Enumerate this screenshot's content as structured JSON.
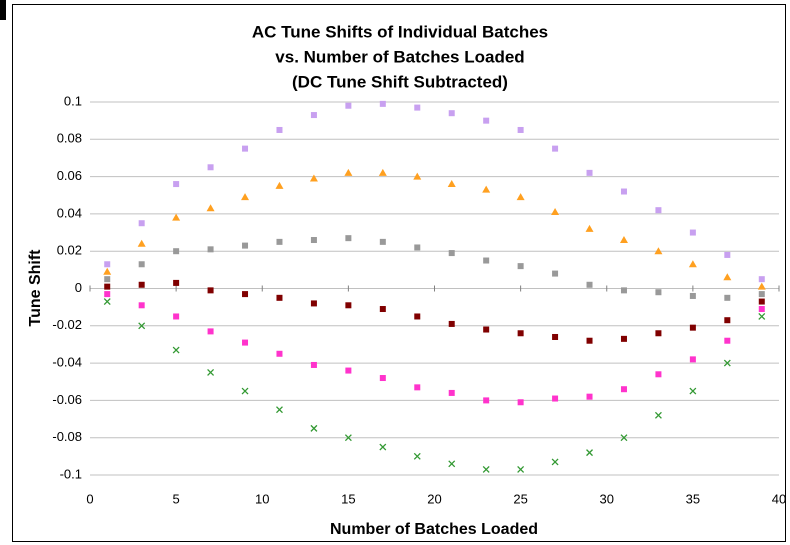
{
  "chart_data": {
    "type": "scatter",
    "title": [
      "AC Tune Shifts of Individual Batches",
      "vs. Number of Batches Loaded",
      "(DC Tune Shift Subtracted)"
    ],
    "x_label": "Number of Batches Loaded",
    "y_label": "Tune Shift",
    "xlim": [
      0,
      40
    ],
    "xticks": [
      0,
      5,
      10,
      15,
      20,
      25,
      30,
      35,
      40
    ],
    "ylim": [
      -0.1,
      0.1
    ],
    "yticks": [
      0.1,
      0.08,
      0.06,
      0.04,
      0.02,
      0,
      -0.02,
      -0.04,
      -0.06,
      -0.08,
      -0.1
    ],
    "grid": true,
    "x": [
      1,
      3,
      5,
      7,
      9,
      11,
      13,
      15,
      17,
      19,
      21,
      23,
      25,
      27,
      29,
      31,
      33,
      35,
      37,
      39
    ],
    "series": [
      {
        "color": "#c8a0f0",
        "marker": "square",
        "values": [
          0.013,
          0.035,
          0.056,
          0.065,
          0.075,
          0.085,
          0.093,
          0.098,
          0.099,
          0.097,
          0.094,
          0.09,
          0.085,
          0.075,
          0.062,
          0.052,
          0.042,
          0.03,
          0.018,
          0.005
        ]
      },
      {
        "color": "#ffa020",
        "marker": "triangle",
        "values": [
          0.009,
          0.024,
          0.038,
          0.043,
          0.049,
          0.055,
          0.059,
          0.062,
          0.062,
          0.06,
          0.056,
          0.053,
          0.049,
          0.041,
          0.032,
          0.026,
          0.02,
          0.013,
          0.006,
          0.001
        ]
      },
      {
        "color": "#999999",
        "marker": "square",
        "values": [
          0.005,
          0.013,
          0.02,
          0.021,
          0.023,
          0.025,
          0.026,
          0.027,
          0.025,
          0.022,
          0.019,
          0.015,
          0.012,
          0.008,
          0.002,
          -0.001,
          -0.002,
          -0.004,
          -0.005,
          -0.003
        ]
      },
      {
        "color": "#800000",
        "marker": "square",
        "values": [
          0.001,
          0.002,
          0.003,
          -0.001,
          -0.003,
          -0.005,
          -0.008,
          -0.009,
          -0.011,
          -0.015,
          -0.019,
          -0.022,
          -0.024,
          -0.026,
          -0.028,
          -0.027,
          -0.024,
          -0.021,
          -0.017,
          -0.007
        ]
      },
      {
        "color": "#ff33cc",
        "marker": "square",
        "values": [
          -0.003,
          -0.009,
          -0.015,
          -0.023,
          -0.029,
          -0.035,
          -0.041,
          -0.044,
          -0.048,
          -0.053,
          -0.056,
          -0.06,
          -0.061,
          -0.059,
          -0.058,
          -0.054,
          -0.046,
          -0.038,
          -0.028,
          -0.011
        ]
      },
      {
        "color": "#339933",
        "marker": "x",
        "values": [
          -0.007,
          -0.02,
          -0.033,
          -0.045,
          -0.055,
          -0.065,
          -0.075,
          -0.08,
          -0.085,
          -0.09,
          -0.094,
          -0.097,
          -0.097,
          -0.093,
          -0.088,
          -0.08,
          -0.068,
          -0.055,
          -0.04,
          -0.015
        ]
      }
    ]
  }
}
